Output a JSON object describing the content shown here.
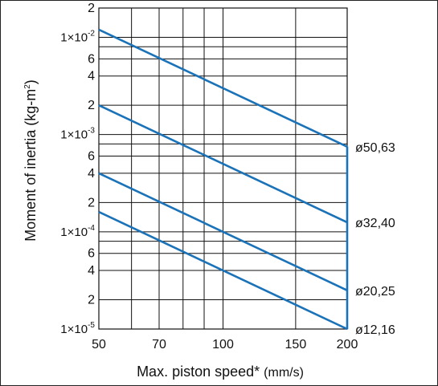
{
  "chart_data": {
    "type": "line",
    "xlabel": "Max. piston speed",
    "xlabel_asterisk": "*",
    "xlabel_unit": "(mm/s)",
    "ylabel": "Moment of inertia (kg-m2)",
    "xscale": "log",
    "yscale": "log",
    "xlim": [
      50,
      200
    ],
    "ylim": [
      1e-05,
      0.02
    ],
    "x_ticks": [
      {
        "value": 50,
        "label": "50"
      },
      {
        "value": 70,
        "label": "70"
      },
      {
        "value": 100,
        "label": "100"
      },
      {
        "value": 150,
        "label": "150"
      },
      {
        "value": 200,
        "label": "200"
      }
    ],
    "x_gridlines": [
      50,
      60,
      70,
      80,
      90,
      100,
      150,
      200
    ],
    "y_ticks": [
      {
        "value": 0.02,
        "base": "2",
        "exp": ""
      },
      {
        "value": 0.01,
        "base": "1×10",
        "exp": "-2"
      },
      {
        "value": 0.006,
        "base": "6",
        "exp": ""
      },
      {
        "value": 0.004,
        "base": "4",
        "exp": ""
      },
      {
        "value": 0.002,
        "base": "2",
        "exp": ""
      },
      {
        "value": 0.001,
        "base": "1×10",
        "exp": "-3"
      },
      {
        "value": 0.0006,
        "base": "6",
        "exp": ""
      },
      {
        "value": 0.0004,
        "base": "4",
        "exp": ""
      },
      {
        "value": 0.0002,
        "base": "2",
        "exp": ""
      },
      {
        "value": 0.0001,
        "base": "1×10",
        "exp": "-4"
      },
      {
        "value": 6e-05,
        "base": "6",
        "exp": ""
      },
      {
        "value": 4e-05,
        "base": "4",
        "exp": ""
      },
      {
        "value": 2e-05,
        "base": "2",
        "exp": ""
      },
      {
        "value": 1e-05,
        "base": "1×10",
        "exp": "-5"
      }
    ],
    "y_gridlines": [
      0.02,
      0.01,
      0.008,
      0.006,
      0.004,
      0.002,
      0.001,
      0.0008,
      0.0006,
      0.0004,
      0.0002,
      0.0001,
      8e-05,
      6e-05,
      4e-05,
      2e-05,
      1e-05
    ],
    "grid": true,
    "series": [
      {
        "name": "ø50,63",
        "x": [
          50,
          200
        ],
        "y": [
          0.012,
          0.00075
        ]
      },
      {
        "name": "ø32,40",
        "x": [
          50,
          200
        ],
        "y": [
          0.002,
          0.000125
        ]
      },
      {
        "name": "ø20,25",
        "x": [
          50,
          200
        ],
        "y": [
          0.0004,
          2.5e-05
        ]
      },
      {
        "name": "ø12,16",
        "x": [
          50,
          200
        ],
        "y": [
          0.00016,
          1e-05
        ]
      }
    ],
    "vertical_limit_x": 200,
    "colors": {
      "line": "#1a72b8",
      "grid": "#111111",
      "asterisk": "#1a8fd8"
    }
  }
}
